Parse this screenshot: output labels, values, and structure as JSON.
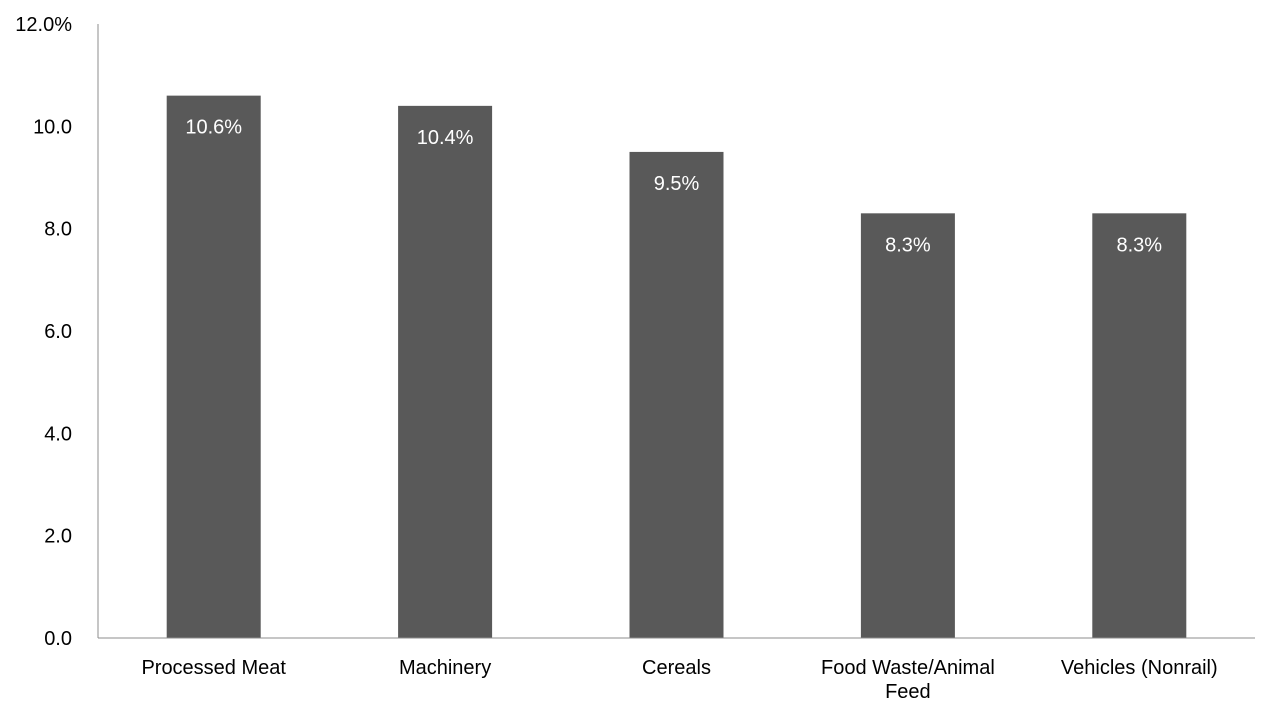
{
  "chart_data": {
    "type": "bar",
    "title": "",
    "xlabel": "",
    "ylabel": "",
    "categories": [
      [
        "Processed Meat"
      ],
      [
        "Machinery"
      ],
      [
        "Cereals"
      ],
      [
        "Food Waste/Animal",
        "Feed"
      ],
      [
        "Vehicles (Nonrail)"
      ]
    ],
    "values": [
      10.6,
      10.4,
      9.5,
      8.3,
      8.3
    ],
    "data_labels": [
      "10.6%",
      "10.4%",
      "9.5%",
      "8.3%",
      "8.3%"
    ],
    "ylim": [
      0,
      12
    ],
    "y_ticks": [
      0,
      2,
      4,
      6,
      8,
      10,
      12
    ],
    "y_tick_labels": [
      "0.0",
      "2.0",
      "4.0",
      "6.0",
      "8.0",
      "10.0",
      "12.0%"
    ],
    "grid": false,
    "legend": "none",
    "bar_color": "#595959",
    "data_label_color": "#ffffff",
    "axis_color": "#8c8c8c"
  }
}
